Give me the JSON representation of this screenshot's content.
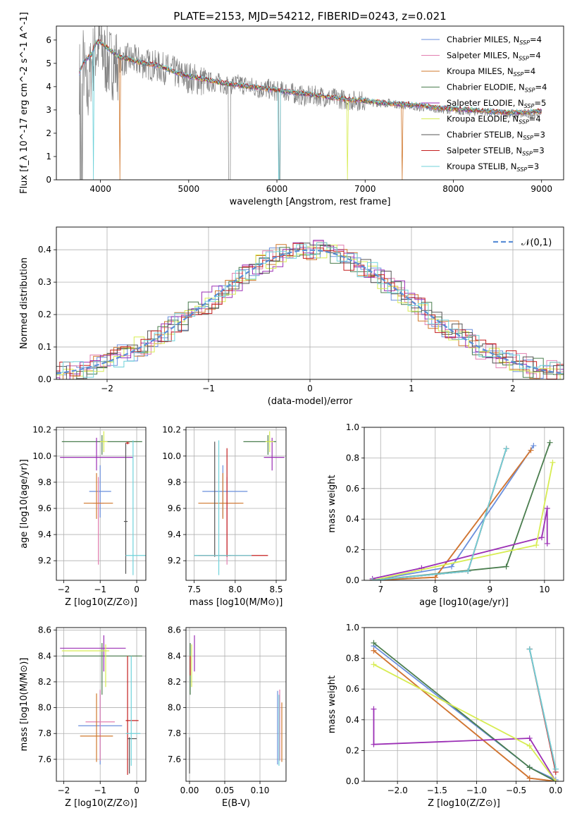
{
  "figure": {
    "title": "PLATE=2153, MJD=54212, FIBERID=0243, z=0.021"
  },
  "series": [
    {
      "name": "Chabrier MILES",
      "nssp": "4",
      "color": "#6a8fdc"
    },
    {
      "name": "Salpeter MILES",
      "nssp": "4",
      "color": "#e27fb0"
    },
    {
      "name": "Kroupa MILES",
      "nssp": "4",
      "color": "#d0782e"
    },
    {
      "name": "Chabrier ELODIE",
      "nssp": "4",
      "color": "#4a7d4e"
    },
    {
      "name": "Salpeter ELODIE",
      "nssp": "5",
      "color": "#9b2fb5"
    },
    {
      "name": "Kroupa ELODIE",
      "nssp": "4",
      "color": "#d7ec52"
    },
    {
      "name": "Chabrier STELIB",
      "nssp": "3",
      "color": "#555555"
    },
    {
      "name": "Salpeter STELIB",
      "nssp": "3",
      "color": "#c41f1f"
    },
    {
      "name": "Kroupa STELIB",
      "nssp": "3",
      "color": "#6fd2da"
    }
  ],
  "chart_data": [
    {
      "id": "spectrum",
      "type": "line",
      "xlabel": "wavelength [Angstrom, rest frame]",
      "ylabel": "Flux [f_λ 10^-17 erg cm^-2 s^-1 A^-1]",
      "xlim": [
        3500,
        9250
      ],
      "ylim": [
        0,
        6.6
      ],
      "xticks": [
        "4000",
        "5000",
        "6000",
        "7000",
        "8000",
        "9000"
      ],
      "yticks": [
        "0",
        "1",
        "2",
        "3",
        "4",
        "5",
        "6"
      ],
      "data_color": "#808080",
      "data_x": [
        3760,
        3800,
        3850,
        3900,
        3950,
        4000,
        4050,
        4100,
        4200,
        4300,
        4400,
        4500,
        4600,
        4700,
        4800,
        4900,
        5000,
        5100,
        5200,
        5300,
        5400,
        5500,
        5600,
        5700,
        5800,
        5900,
        6000,
        6100,
        6200,
        6300,
        6400,
        6500,
        6600,
        6700,
        6800,
        6900,
        7000,
        7100,
        7200,
        7300,
        7400,
        7500,
        7600,
        7700,
        7800,
        7900,
        8000,
        8100,
        8200,
        8300,
        8400,
        8500,
        8600,
        8700,
        8800,
        8900,
        9000
      ],
      "data_y": [
        4.4,
        5.2,
        3.6,
        5.0,
        5.6,
        5.8,
        5.2,
        5.0,
        5.0,
        5.2,
        5.1,
        5.0,
        4.9,
        4.8,
        4.7,
        4.5,
        4.4,
        4.3,
        4.2,
        4.2,
        4.1,
        4.1,
        4.1,
        4.0,
        3.9,
        3.9,
        3.8,
        3.8,
        3.7,
        3.6,
        3.6,
        3.6,
        3.5,
        3.5,
        3.4,
        3.4,
        3.4,
        3.3,
        3.3,
        3.3,
        3.2,
        3.2,
        3.1,
        3.1,
        3.05,
        3.0,
        3.0,
        2.95,
        2.9,
        2.95,
        2.9,
        2.85,
        2.85,
        2.8,
        2.8,
        2.8,
        2.9
      ],
      "model_x": [
        3760,
        3800,
        3900,
        3950,
        4000,
        4100,
        4200,
        4300,
        4400,
        4500,
        4600,
        4700,
        4800,
        4900,
        5000,
        5200,
        5400,
        5600,
        5800,
        6000,
        6200,
        6400,
        6600,
        6800,
        7000,
        7200,
        7400,
        7600,
        7800,
        8000,
        8200,
        8400,
        8600,
        8800,
        9000
      ],
      "model_y": [
        4.6,
        5.0,
        5.4,
        5.9,
        5.9,
        5.6,
        5.3,
        5.2,
        5.1,
        5.0,
        4.95,
        4.85,
        4.7,
        4.55,
        4.45,
        4.3,
        4.15,
        4.05,
        3.95,
        3.85,
        3.75,
        3.65,
        3.55,
        3.45,
        3.4,
        3.3,
        3.25,
        3.2,
        3.1,
        3.05,
        3.0,
        2.95,
        2.9,
        2.9,
        2.95
      ],
      "gaps": [
        {
          "x": 3920,
          "series": [
            8
          ]
        },
        {
          "x": 4220,
          "series": [
            2
          ]
        },
        {
          "x": 6025,
          "series": [
            8
          ]
        },
        {
          "x": 6800,
          "series": [
            5
          ]
        },
        {
          "x": 7420,
          "series": [
            2
          ]
        }
      ]
    },
    {
      "id": "residuals",
      "type": "histogram",
      "xlabel": "(data-model)/error",
      "ylabel": "Normed distribution",
      "xlim": [
        -2.5,
        2.5
      ],
      "ylim": [
        0,
        0.47
      ],
      "xticks": [
        "−2",
        "−1",
        "0",
        "1",
        "2"
      ],
      "yticks": [
        "0.0",
        "0.1",
        "0.2",
        "0.3",
        "0.4"
      ],
      "gaussian_label": "𝒩(0,1)",
      "gaussian_color": "#5b8ed6",
      "bin_width": 0.1
    },
    {
      "id": "age_vs_Z",
      "type": "errorbar",
      "xlabel": "Z [log10(Z/Z⊙)]",
      "ylabel": "age [log10(age/yr)]",
      "xlim": [
        -2.2,
        0.25
      ],
      "ylim": [
        9.05,
        10.22
      ],
      "xticks": [
        "−2",
        "−1",
        "0"
      ],
      "yticks": [
        "9.2",
        "9.4",
        "9.6",
        "9.8",
        "10.0",
        "10.2"
      ],
      "points": [
        {
          "s": 0,
          "x": -1.0,
          "xerr": [
            0.3,
            0.3
          ],
          "y": 9.73,
          "yerr": [
            0.2,
            0.2
          ]
        },
        {
          "s": 1,
          "x": -1.05,
          "xerr": [
            0.15,
            0.15
          ],
          "y": 9.64,
          "yerr": [
            0.47,
            0.2
          ]
        },
        {
          "s": 2,
          "x": -1.1,
          "xerr": [
            0.35,
            0.45
          ],
          "y": 9.64,
          "yerr": [
            0.12,
            0.23
          ]
        },
        {
          "s": 3,
          "x": -0.95,
          "xerr": [
            1.1,
            1.1
          ],
          "y": 10.11,
          "yerr": [
            0.1,
            0.05
          ]
        },
        {
          "s": 4,
          "x": -1.1,
          "xerr": [
            1.0,
            1.0
          ],
          "y": 9.99,
          "yerr": [
            0.1,
            0.15
          ]
        },
        {
          "s": 5,
          "x": -0.9,
          "xerr": [
            0.1,
            0.1
          ],
          "y": 10.11,
          "yerr": [
            0.08,
            0.08
          ]
        },
        {
          "s": 6,
          "x": -0.3,
          "xerr": [
            0.05,
            0.05
          ],
          "y": 9.5,
          "yerr": [
            0.4,
            0.6
          ]
        },
        {
          "s": 7,
          "x": -0.25,
          "xerr": [
            0.05,
            0.05
          ],
          "y": 10.1,
          "yerr": [
            0.01,
            0.01
          ]
        },
        {
          "s": 8,
          "x": -0.1,
          "xerr": [
            0.2,
            0.35
          ],
          "y": 9.24,
          "yerr": [
            0.15,
            0.88
          ]
        }
      ]
    },
    {
      "id": "age_vs_mass",
      "type": "errorbar",
      "xlabel": "mass [log10(M/M⊙)]",
      "ylabel": "",
      "xlim": [
        7.4,
        8.62
      ],
      "ylim": [
        9.05,
        10.22
      ],
      "xticks": [
        "7.5",
        "8.0",
        "8.5"
      ],
      "yticks": [
        "9.2",
        "9.4",
        "9.6",
        "9.8",
        "10.0",
        "10.2"
      ],
      "points": [
        {
          "s": 0,
          "x": 7.85,
          "xerr": [
            0.25,
            0.3
          ],
          "y": 9.73,
          "yerr": [
            0.2,
            0.2
          ]
        },
        {
          "s": 1,
          "x": 7.9,
          "xerr": [
            0.15,
            0.15
          ],
          "y": 9.64,
          "yerr": [
            0.47,
            0.2
          ]
        },
        {
          "s": 2,
          "x": 7.85,
          "xerr": [
            0.3,
            0.25
          ],
          "y": 9.64,
          "yerr": [
            0.12,
            0.23
          ]
        },
        {
          "s": 3,
          "x": 8.4,
          "xerr": [
            0.3,
            0.1
          ],
          "y": 10.11,
          "yerr": [
            0.1,
            0.05
          ]
        },
        {
          "s": 4,
          "x": 8.45,
          "xerr": [
            0.1,
            0.15
          ],
          "y": 9.99,
          "yerr": [
            0.1,
            0.15
          ]
        },
        {
          "s": 5,
          "x": 8.42,
          "xerr": [
            0.05,
            0.05
          ],
          "y": 10.11,
          "yerr": [
            0.08,
            0.08
          ]
        },
        {
          "s": 6,
          "x": 7.75,
          "xerr": [
            0.25,
            0.2
          ],
          "y": 9.24,
          "yerr": [
            0.01,
            0.87
          ]
        },
        {
          "s": 7,
          "x": 7.9,
          "xerr": [
            0.35,
            0.5
          ],
          "y": 9.24,
          "yerr": [
            0.01,
            0.82
          ]
        },
        {
          "s": 8,
          "x": 7.8,
          "xerr": [
            0.3,
            0.4
          ],
          "y": 9.24,
          "yerr": [
            0.15,
            0.88
          ]
        }
      ]
    },
    {
      "id": "mass_weight_vs_age",
      "type": "line",
      "xlabel": "age [log10(age/yr)]",
      "ylabel": "mass weight",
      "xlim": [
        6.7,
        10.35
      ],
      "ylim": [
        0,
        1.0
      ],
      "xticks": [
        "7",
        "8",
        "9",
        "10"
      ],
      "yticks": [
        "0.0",
        "0.2",
        "0.4",
        "0.6",
        "0.8",
        "1.0"
      ],
      "series": [
        {
          "s": 0,
          "x": [
            6.85,
            8.3,
            9.8
          ],
          "y": [
            0,
            0.09,
            0.88
          ]
        },
        {
          "s": 1,
          "x": [
            6.85,
            8.0,
            9.75
          ],
          "y": [
            0,
            0.02,
            0.85
          ]
        },
        {
          "s": 2,
          "x": [
            6.85,
            8.0,
            9.75
          ],
          "y": [
            0,
            0.02,
            0.85
          ]
        },
        {
          "s": 3,
          "x": [
            6.85,
            9.3,
            10.1
          ],
          "y": [
            0,
            0.09,
            0.9
          ]
        },
        {
          "s": 4,
          "x": [
            6.85,
            7.75,
            9.95,
            10.05,
            10.05
          ],
          "y": [
            0.01,
            0.08,
            0.28,
            0.47,
            0.24
          ]
        },
        {
          "s": 5,
          "x": [
            6.85,
            9.85,
            10.15
          ],
          "y": [
            0,
            0.23,
            0.77
          ]
        },
        {
          "s": 6,
          "x": [
            6.85,
            8.6,
            9.3
          ],
          "y": [
            0,
            0.06,
            0.86
          ]
        },
        {
          "s": 7,
          "x": [
            6.85,
            8.6,
            9.3
          ],
          "y": [
            0,
            0.06,
            0.86
          ]
        },
        {
          "s": 8,
          "x": [
            6.85,
            8.6,
            9.3
          ],
          "y": [
            0,
            0.06,
            0.86
          ]
        }
      ]
    },
    {
      "id": "mass_vs_Z",
      "type": "errorbar",
      "xlabel": "Z [log10(Z/Z⊙)]",
      "ylabel": "mass [log10(M/M⊙)]",
      "xlim": [
        -2.2,
        0.25
      ],
      "ylim": [
        7.43,
        8.62
      ],
      "xticks": [
        "−2",
        "−1",
        "0"
      ],
      "yticks": [
        "7.6",
        "7.8",
        "8.0",
        "8.2",
        "8.4",
        "8.6"
      ],
      "points": [
        {
          "s": 0,
          "x": -1.0,
          "xerr": [
            0.6,
            0.6
          ],
          "y": 7.86,
          "yerr": [
            0.3,
            0.27
          ]
        },
        {
          "s": 1,
          "x": -1.0,
          "xerr": [
            0.4,
            0.4
          ],
          "y": 7.89,
          "yerr": [
            0.3,
            0.25
          ]
        },
        {
          "s": 2,
          "x": -1.1,
          "xerr": [
            0.45,
            0.45
          ],
          "y": 7.78,
          "yerr": [
            0.2,
            0.33
          ]
        },
        {
          "s": 3,
          "x": -0.95,
          "xerr": [
            1.1,
            1.1
          ],
          "y": 8.4,
          "yerr": [
            0.3,
            0.1
          ]
        },
        {
          "s": 4,
          "x": -0.9,
          "xerr": [
            1.2,
            0.6
          ],
          "y": 8.46,
          "yerr": [
            0.18,
            0.1
          ]
        },
        {
          "s": 5,
          "x": -0.85,
          "xerr": [
            1.2,
            0.1
          ],
          "y": 8.44,
          "yerr": [
            0.28,
            0.05
          ]
        },
        {
          "s": 6,
          "x": -0.2,
          "xerr": [
            0.05,
            0.2
          ],
          "y": 7.76,
          "yerr": [
            0.27,
            0.01
          ]
        },
        {
          "s": 7,
          "x": -0.25,
          "xerr": [
            0.05,
            0.3
          ],
          "y": 7.9,
          "yerr": [
            0.42,
            0.5
          ]
        },
        {
          "s": 8,
          "x": -0.15,
          "xerr": [
            0.15,
            0.25
          ],
          "y": 7.8,
          "yerr": [
            0.25,
            0.6
          ]
        }
      ]
    },
    {
      "id": "mass_vs_ebv",
      "type": "errorbar",
      "xlabel": "E(B-V)",
      "ylabel": "",
      "xlim": [
        -0.005,
        0.137
      ],
      "ylim": [
        7.43,
        8.62
      ],
      "xticks": [
        "0.00",
        "0.05",
        "0.10"
      ],
      "yticks": [
        "7.6",
        "7.8",
        "8.0",
        "8.2",
        "8.4",
        "8.6"
      ],
      "points": [
        {
          "s": 0,
          "x": 0.125,
          "y": 7.86,
          "yerr": [
            0.3,
            0.27
          ]
        },
        {
          "s": 1,
          "x": 0.128,
          "y": 7.89,
          "yerr": [
            0.3,
            0.25
          ]
        },
        {
          "s": 2,
          "x": 0.131,
          "y": 7.78,
          "yerr": [
            0.2,
            0.26
          ]
        },
        {
          "s": 3,
          "x": 0.001,
          "y": 8.4,
          "yerr": [
            0.3,
            0.1
          ]
        },
        {
          "s": 4,
          "x": 0.007,
          "y": 8.46,
          "yerr": [
            0.18,
            0.1
          ]
        },
        {
          "s": 5,
          "x": 0.003,
          "y": 8.44,
          "yerr": [
            0.28,
            0.05
          ]
        },
        {
          "s": 6,
          "x": 0.0,
          "y": 7.76,
          "yerr": [
            0.27,
            0.01
          ]
        },
        {
          "s": 7,
          "x": 0.001,
          "y": 8.35,
          "yerr": [
            0.1,
            0.05
          ]
        },
        {
          "s": 8,
          "x": 0.127,
          "y": 7.8,
          "yerr": [
            0.25,
            0.3
          ]
        }
      ]
    },
    {
      "id": "mass_weight_vs_Z",
      "type": "line",
      "xlabel": "Z [log10(Z/Z⊙)]",
      "ylabel": "mass weight",
      "xlim": [
        -2.42,
        0.1
      ],
      "ylim": [
        0,
        1.0
      ],
      "xticks": [
        "−2.0",
        "−1.5",
        "−1.0",
        "−0.5",
        "0.0"
      ],
      "yticks": [
        "0.0",
        "0.2",
        "0.4",
        "0.6",
        "0.8",
        "1.0"
      ],
      "series": [
        {
          "s": 0,
          "x": [
            -2.3,
            -0.33,
            0.0
          ],
          "y": [
            0.88,
            0.09,
            0.01
          ]
        },
        {
          "s": 1,
          "x": [
            -2.3,
            -0.33,
            0.0
          ],
          "y": [
            0.85,
            0.02,
            0.0
          ]
        },
        {
          "s": 2,
          "x": [
            -2.3,
            -0.33,
            0.0
          ],
          "y": [
            0.85,
            0.02,
            0.0
          ]
        },
        {
          "s": 3,
          "x": [
            -2.3,
            -0.33,
            0.0
          ],
          "y": [
            0.9,
            0.09,
            0.0
          ]
        },
        {
          "s": 4,
          "x": [
            -2.3,
            -2.3,
            -0.33,
            0.0
          ],
          "y": [
            0.47,
            0.24,
            0.28,
            0.0
          ]
        },
        {
          "s": 5,
          "x": [
            -2.3,
            -0.33,
            0.0
          ],
          "y": [
            0.76,
            0.23,
            0.0
          ]
        },
        {
          "s": 6,
          "x": [
            -0.33,
            0.0
          ],
          "y": [
            0.86,
            0.08
          ]
        },
        {
          "s": 7,
          "x": [
            -0.33,
            0.0
          ],
          "y": [
            0.86,
            0.06
          ]
        },
        {
          "s": 8,
          "x": [
            -0.33,
            0.0
          ],
          "y": [
            0.86,
            0.08
          ]
        }
      ]
    }
  ]
}
